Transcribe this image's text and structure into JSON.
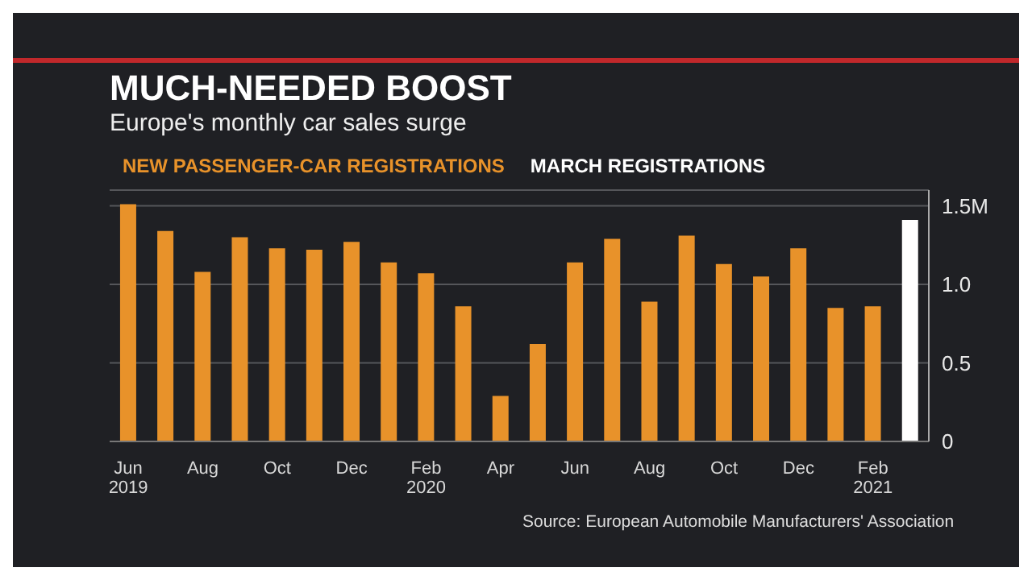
{
  "chart_data": {
    "type": "bar",
    "title": "MUCH-NEEDED BOOST",
    "subtitle": "Europe's monthly car sales surge",
    "categories": [
      "Jun\n2019",
      null,
      "Aug",
      null,
      "Oct",
      null,
      "Dec",
      null,
      "Feb\n2020",
      null,
      "Apr",
      null,
      "Jun",
      null,
      "Aug",
      null,
      "Oct",
      null,
      "Dec",
      null,
      "Feb\n2021",
      null
    ],
    "series": [
      {
        "name": "NEW PASSENGER-CAR REGISTRATIONS",
        "color": "#e8922a",
        "values": [
          1.51,
          1.34,
          1.08,
          1.3,
          1.23,
          1.22,
          1.27,
          1.14,
          1.07,
          0.86,
          0.29,
          0.62,
          1.14,
          1.29,
          0.89,
          1.31,
          1.13,
          1.05,
          1.23,
          0.85,
          0.86,
          null
        ]
      },
      {
        "name": "MARCH REGISTRATIONS",
        "color": "#ffffff",
        "values": [
          null,
          null,
          null,
          null,
          null,
          null,
          null,
          null,
          null,
          null,
          null,
          null,
          null,
          null,
          null,
          null,
          null,
          null,
          null,
          null,
          null,
          1.41
        ]
      }
    ],
    "stacked": true,
    "ylim": [
      0,
      1.6
    ],
    "yticks": [
      0,
      {
        "value": 0.5,
        "label": "0.5"
      },
      {
        "value": 1,
        "label": "1.0"
      },
      {
        "value": 1.5,
        "label": "1.5M"
      }
    ],
    "grid": "y",
    "legend": "top left",
    "annotations": [
      "Source: European Automobile Manufacturers' Association"
    ]
  }
}
